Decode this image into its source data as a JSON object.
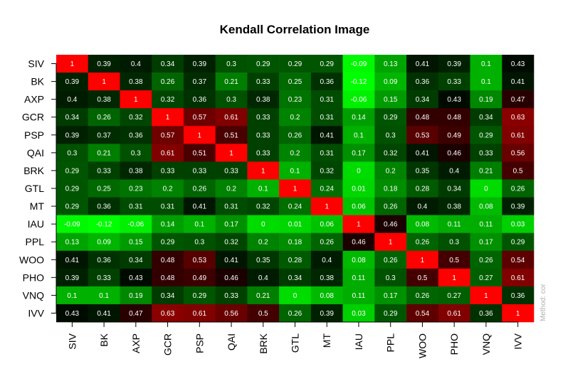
{
  "chart_data": {
    "type": "heatmap",
    "title": "Kendall Correlation  Image",
    "method_note": "Method: cor",
    "labels": [
      "SIV",
      "BK",
      "AXP",
      "GCR",
      "PSP",
      "QAI",
      "BRK",
      "GTL",
      "MT",
      "IAU",
      "PPL",
      "WOO",
      "PHO",
      "VNQ",
      "IVV"
    ],
    "values": [
      [
        1,
        0.39,
        0.4,
        0.34,
        0.39,
        0.3,
        0.29,
        0.29,
        0.29,
        -0.09,
        0.13,
        0.41,
        0.39,
        0.1,
        0.43
      ],
      [
        0.39,
        1,
        0.38,
        0.26,
        0.37,
        0.21,
        0.33,
        0.25,
        0.36,
        -0.12,
        0.09,
        0.36,
        0.33,
        0.1,
        0.41
      ],
      [
        0.4,
        0.38,
        1,
        0.32,
        0.36,
        0.3,
        0.38,
        0.23,
        0.31,
        -0.06,
        0.15,
        0.34,
        0.43,
        0.19,
        0.47
      ],
      [
        0.34,
        0.26,
        0.32,
        1,
        0.57,
        0.61,
        0.33,
        0.2,
        0.31,
        0.14,
        0.29,
        0.48,
        0.48,
        0.34,
        0.63
      ],
      [
        0.39,
        0.37,
        0.36,
        0.57,
        1,
        0.51,
        0.33,
        0.26,
        0.41,
        0.1,
        0.3,
        0.53,
        0.49,
        0.29,
        0.61
      ],
      [
        0.3,
        0.21,
        0.3,
        0.61,
        0.51,
        1,
        0.33,
        0.2,
        0.31,
        0.17,
        0.32,
        0.41,
        0.46,
        0.33,
        0.56
      ],
      [
        0.29,
        0.33,
        0.38,
        0.33,
        0.33,
        0.33,
        1,
        0.1,
        0.32,
        0,
        0.2,
        0.35,
        0.4,
        0.21,
        0.5
      ],
      [
        0.29,
        0.25,
        0.23,
        0.2,
        0.26,
        0.2,
        0.1,
        1,
        0.24,
        0.01,
        0.18,
        0.28,
        0.34,
        0,
        0.26
      ],
      [
        0.29,
        0.36,
        0.31,
        0.31,
        0.41,
        0.31,
        0.32,
        0.24,
        1,
        0.06,
        0.26,
        0.4,
        0.38,
        0.08,
        0.39
      ],
      [
        -0.09,
        -0.12,
        -0.06,
        0.14,
        0.1,
        0.17,
        0,
        0.01,
        0.06,
        1,
        0.46,
        0.08,
        0.11,
        0.11,
        0.03
      ],
      [
        0.13,
        0.09,
        0.15,
        0.29,
        0.3,
        0.32,
        0.2,
        0.18,
        0.26,
        0.46,
        1,
        0.26,
        0.3,
        0.17,
        0.29
      ],
      [
        0.41,
        0.36,
        0.34,
        0.48,
        0.53,
        0.41,
        0.35,
        0.28,
        0.4,
        0.08,
        0.26,
        1,
        0.5,
        0.26,
        0.54
      ],
      [
        0.39,
        0.33,
        0.43,
        0.48,
        0.49,
        0.46,
        0.4,
        0.34,
        0.38,
        0.11,
        0.3,
        0.5,
        1,
        0.27,
        0.61
      ],
      [
        0.1,
        0.1,
        0.19,
        0.34,
        0.29,
        0.33,
        0.21,
        0,
        0.08,
        0.11,
        0.17,
        0.26,
        0.27,
        1,
        0.36
      ],
      [
        0.43,
        0.41,
        0.47,
        0.63,
        0.61,
        0.56,
        0.5,
        0.26,
        0.39,
        0.03,
        0.29,
        0.54,
        0.61,
        0.36,
        1
      ]
    ],
    "legend": "none",
    "grid": false,
    "colors": {
      "diagonal": "#ff0000",
      "low": "#00ff00",
      "mid": "#000000",
      "high": "#ff0000"
    }
  }
}
